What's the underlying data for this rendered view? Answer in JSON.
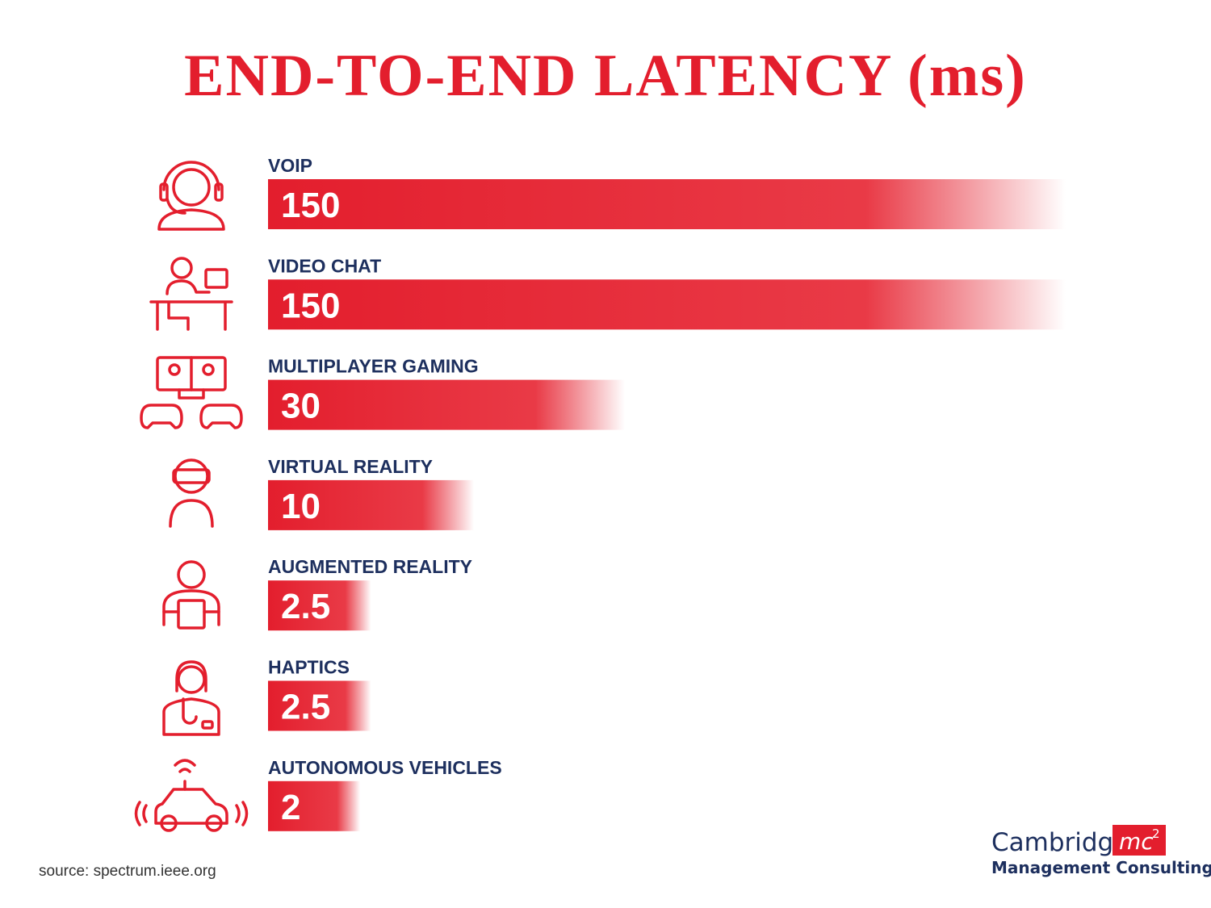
{
  "chart_data": {
    "type": "bar",
    "orientation": "horizontal",
    "title": "END-TO-END LATENCY (ms)",
    "categories": [
      "VOIP",
      "VIDEO CHAT",
      "MULTIPLAYER GAMING",
      "VIRTUAL REALITY",
      "AUGMENTED REALITY",
      "HAPTICS",
      "AUTONOMOUS VEHICLES"
    ],
    "values": [
      150,
      150,
      30,
      10,
      2.5,
      2.5,
      2
    ],
    "color": "#e31e2d",
    "source": "source: spectrum.ieee.org",
    "logo": {
      "name": "Cambridge",
      "mark": "mc",
      "mark_sup": "2",
      "tagline": "Management Consulting"
    }
  }
}
